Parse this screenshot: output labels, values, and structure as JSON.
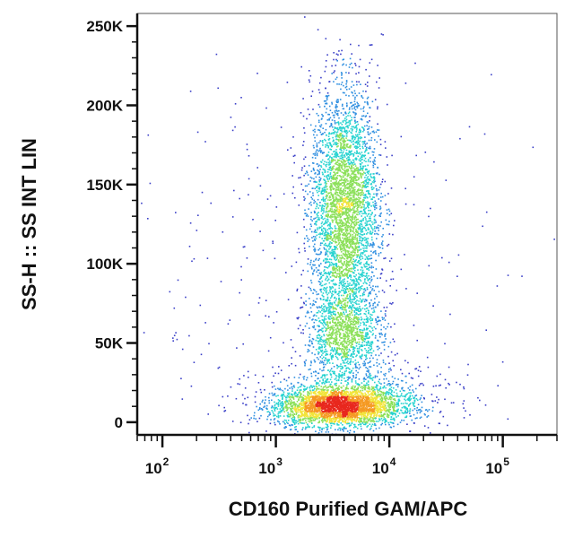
{
  "chart_data": {
    "type": "scatter",
    "subtype": "flow-cytometry density dot plot",
    "xlabel": "CD160 Purified GAM/APC",
    "ylabel": "SS-H :: SS INT LIN",
    "x_scale": "log",
    "xlim": [
      60,
      300000
    ],
    "ylim": [
      -8000,
      258000
    ],
    "x_ticks": [
      {
        "value": 100,
        "base": "10",
        "exp": "2"
      },
      {
        "value": 1000,
        "base": "10",
        "exp": "3"
      },
      {
        "value": 10000,
        "base": "10",
        "exp": "4"
      },
      {
        "value": 100000,
        "base": "10",
        "exp": "5"
      }
    ],
    "y_ticks": [
      {
        "value": 0,
        "label": "0"
      },
      {
        "value": 50000,
        "label": "50K"
      },
      {
        "value": 100000,
        "label": "100K"
      },
      {
        "value": 150000,
        "label": "150K"
      },
      {
        "value": 200000,
        "label": "200K"
      },
      {
        "value": 250000,
        "label": "250K"
      }
    ],
    "grid": false,
    "legend": "none",
    "colormap": [
      "#3a3fc8",
      "#2f8fe0",
      "#27d3d0",
      "#8ce05a",
      "#f2e43a",
      "#f59a24",
      "#e8281e"
    ],
    "populations": [
      {
        "x_center": 3500,
        "y_center": 10000,
        "x_log_spread": 0.28,
        "y_spread": 6000,
        "weight": 0.34
      },
      {
        "x_center": 4000,
        "y_center": 55000,
        "x_log_spread": 0.17,
        "y_spread": 15000,
        "weight": 0.14
      },
      {
        "x_center": 4000,
        "y_center": 135000,
        "x_log_spread": 0.15,
        "y_spread": 38000,
        "weight": 0.42
      },
      {
        "x_center": 5000,
        "y_center": 18000,
        "x_log_spread": 0.42,
        "y_spread": 9000,
        "weight": 0.07
      },
      {
        "x_center": 2000,
        "y_center": 90000,
        "x_log_spread": 0.9,
        "y_spread": 70000,
        "weight": 0.03
      }
    ]
  }
}
